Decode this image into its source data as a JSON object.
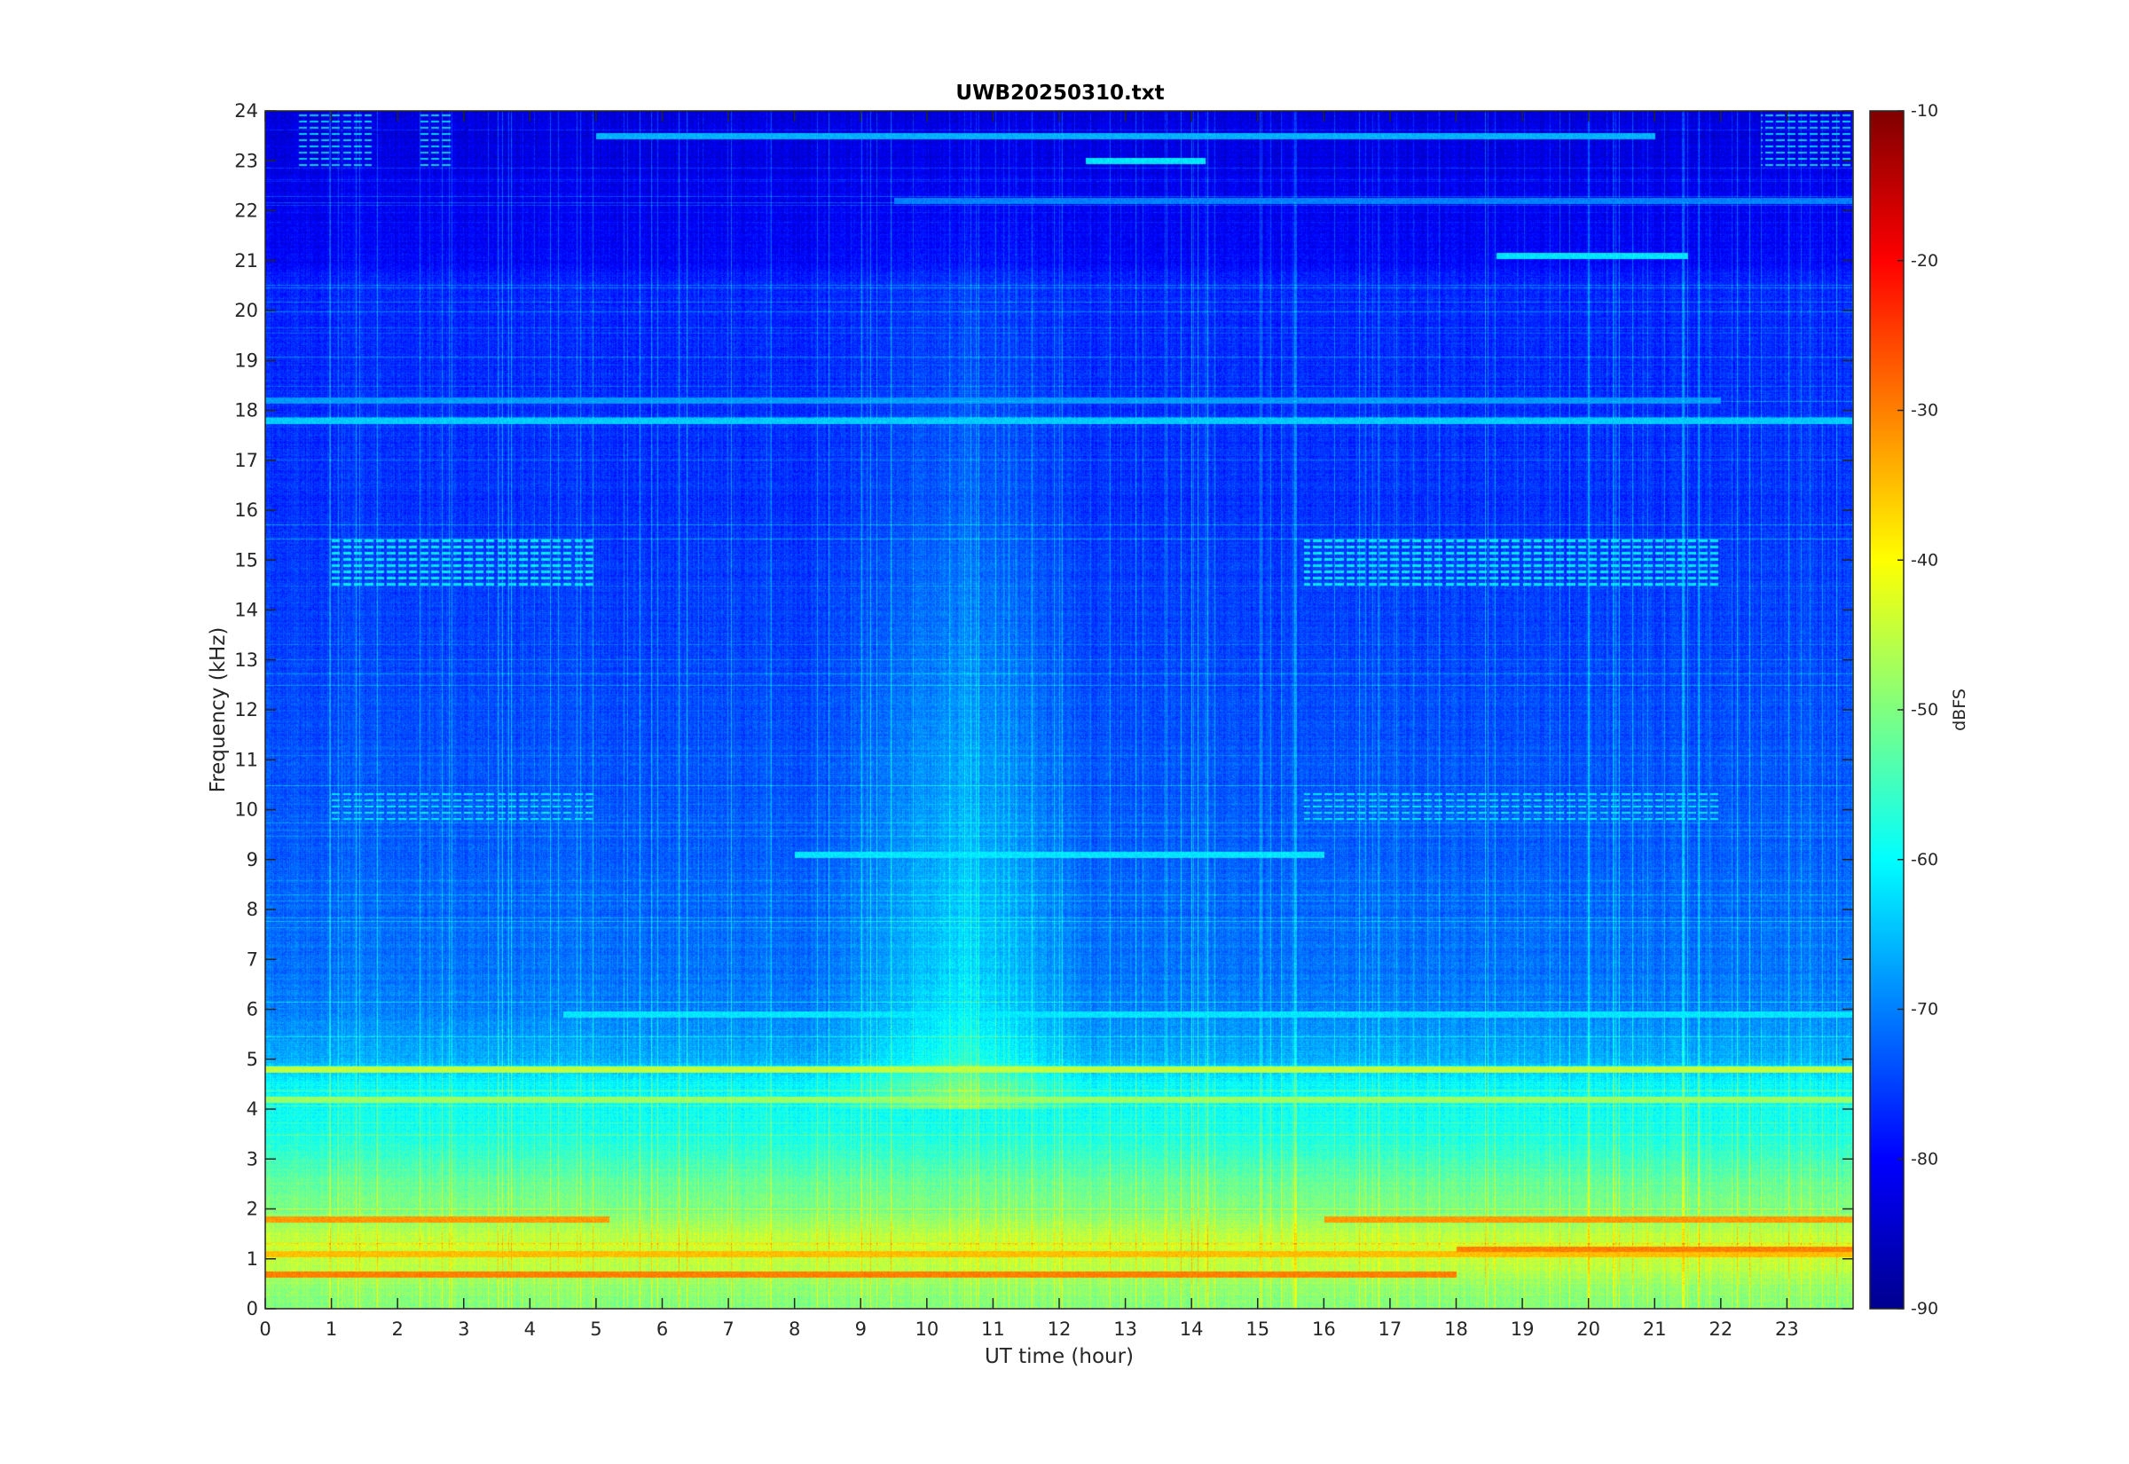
{
  "chart_data": {
    "type": "heatmap",
    "title": "UWB20250310.txt",
    "xlabel": "UT time (hour)",
    "ylabel": "Frequency (kHz)",
    "xlim": [
      0,
      24
    ],
    "ylim": [
      0,
      24
    ],
    "x_ticks": [
      "0",
      "1",
      "2",
      "3",
      "4",
      "5",
      "6",
      "7",
      "8",
      "9",
      "10",
      "11",
      "12",
      "13",
      "14",
      "15",
      "16",
      "17",
      "18",
      "19",
      "20",
      "21",
      "22",
      "23"
    ],
    "y_ticks": [
      "0",
      "1",
      "2",
      "3",
      "4",
      "5",
      "6",
      "7",
      "8",
      "9",
      "10",
      "11",
      "12",
      "13",
      "14",
      "15",
      "16",
      "17",
      "18",
      "19",
      "20",
      "21",
      "22",
      "23",
      "24"
    ],
    "colorbar": {
      "label": "dBFS",
      "range": [
        -90,
        -10
      ],
      "ticks": [
        "-90",
        "-80",
        "-70",
        "-60",
        "-50",
        "-40",
        "-30",
        "-20",
        "-10"
      ],
      "colormap": "jet"
    },
    "background_dbfs_by_frequency_khz": [
      {
        "f": 0.0,
        "db": -50
      },
      {
        "f": 0.5,
        "db": -48
      },
      {
        "f": 1.0,
        "db": -44
      },
      {
        "f": 1.5,
        "db": -45
      },
      {
        "f": 2.0,
        "db": -50
      },
      {
        "f": 2.5,
        "db": -52
      },
      {
        "f": 3.0,
        "db": -55
      },
      {
        "f": 3.5,
        "db": -58
      },
      {
        "f": 4.5,
        "db": -60
      },
      {
        "f": 5.0,
        "db": -66
      },
      {
        "f": 6.0,
        "db": -70
      },
      {
        "f": 8.0,
        "db": -72
      },
      {
        "f": 12.0,
        "db": -74
      },
      {
        "f": 16.0,
        "db": -76
      },
      {
        "f": 20.5,
        "db": -77
      },
      {
        "f": 21.0,
        "db": -80
      },
      {
        "f": 22.0,
        "db": -81
      },
      {
        "f": 24.0,
        "db": -83
      }
    ],
    "horizontal_lines": [
      {
        "f": 0.7,
        "t_start": 0.0,
        "t_end": 18.0,
        "db": -30
      },
      {
        "f": 1.1,
        "t_start": 0.0,
        "t_end": 24.0,
        "db": -35
      },
      {
        "f": 1.2,
        "t_start": 18.0,
        "t_end": 24.0,
        "db": -30
      },
      {
        "f": 1.8,
        "t_start": 0.0,
        "t_end": 5.2,
        "db": -32
      },
      {
        "f": 1.8,
        "t_start": 16.0,
        "t_end": 24.0,
        "db": -32
      },
      {
        "f": 4.2,
        "t_start": 0.0,
        "t_end": 24.0,
        "db": -48
      },
      {
        "f": 4.8,
        "t_start": 0.0,
        "t_end": 24.0,
        "db": -45
      },
      {
        "f": 5.9,
        "t_start": 4.5,
        "t_end": 24.0,
        "db": -62
      },
      {
        "f": 9.1,
        "t_start": 8.0,
        "t_end": 16.0,
        "db": -62
      },
      {
        "f": 17.8,
        "t_start": 0.0,
        "t_end": 24.0,
        "db": -64
      },
      {
        "f": 18.2,
        "t_start": 0.0,
        "t_end": 22.0,
        "db": -68
      },
      {
        "f": 21.1,
        "t_start": 18.6,
        "t_end": 21.5,
        "db": -62
      },
      {
        "f": 22.2,
        "t_start": 9.5,
        "t_end": 24.0,
        "db": -70
      },
      {
        "f": 23.0,
        "t_start": 12.4,
        "t_end": 14.2,
        "db": -62
      },
      {
        "f": 23.5,
        "t_start": 5.0,
        "t_end": 21.0,
        "db": -66
      }
    ],
    "tone_bands": [
      {
        "f_start": 14.5,
        "f_end": 15.5,
        "t_start": 1.0,
        "t_end": 5.0,
        "db": -62
      },
      {
        "f_start": 9.8,
        "f_end": 10.4,
        "t_start": 1.0,
        "t_end": 5.0,
        "db": -62
      },
      {
        "f_start": 14.5,
        "f_end": 15.5,
        "t_start": 15.7,
        "t_end": 22.0,
        "db": -62
      },
      {
        "f_start": 9.8,
        "f_end": 10.4,
        "t_start": 15.7,
        "t_end": 22.0,
        "db": -62
      },
      {
        "f_start": 22.9,
        "f_end": 24.0,
        "t_start": 0.5,
        "t_end": 1.6,
        "db": -64
      },
      {
        "f_start": 22.9,
        "f_end": 24.0,
        "t_start": 2.3,
        "t_end": 2.8,
        "db": -64
      },
      {
        "f_start": 22.9,
        "f_end": 24.0,
        "t_start": 22.6,
        "t_end": 24.0,
        "db": -64
      }
    ],
    "elevated_time_band": {
      "t_start": 8.5,
      "t_end": 12.5,
      "db_increase": 10
    }
  }
}
